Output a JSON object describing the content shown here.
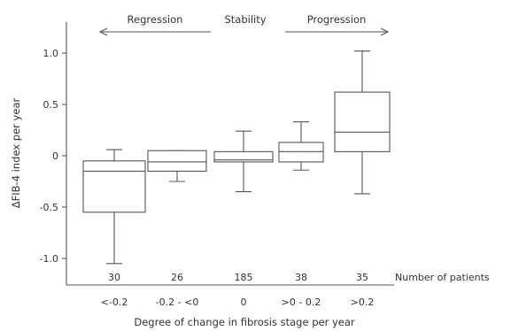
{
  "chart_data": {
    "type": "boxplot",
    "xlabel": "Degree of change in fibrosis stage per year",
    "ylabel": "ΔFIB-4 index per year",
    "ylim": [
      -1.2,
      1.2
    ],
    "y_ticks": [
      "1.0",
      "0.5",
      "0",
      "-0.5",
      "-1.0"
    ],
    "y_tick_values": [
      1.0,
      0.5,
      0,
      -0.5,
      -1.0
    ],
    "categories": [
      "<-0.2",
      "-0.2 - <0",
      "0",
      ">0 - 0.2",
      ">0.2"
    ],
    "n_label": "Number of patients",
    "n_values": [
      "30",
      "26",
      "185",
      "38",
      "35"
    ],
    "boxes": [
      {
        "category": "<-0.2",
        "whisker_low": -1.05,
        "q1": -0.55,
        "median": -0.15,
        "q3": -0.05,
        "whisker_high": 0.06
      },
      {
        "category": "-0.2 - <0",
        "whisker_low": -0.25,
        "q1": -0.15,
        "median": -0.06,
        "q3": 0.05,
        "whisker_high": 0.05
      },
      {
        "category": "0",
        "whisker_low": -0.35,
        "q1": -0.06,
        "median": -0.04,
        "q3": 0.04,
        "whisker_high": 0.24
      },
      {
        "category": ">0 - 0.2",
        "whisker_low": -0.14,
        "q1": -0.06,
        "median": 0.04,
        "q3": 0.13,
        "whisker_high": 0.33
      },
      {
        "category": ">0.2",
        "whisker_low": -0.37,
        "q1": 0.04,
        "median": 0.23,
        "q3": 0.62,
        "whisker_high": 1.02
      }
    ],
    "annotations": {
      "regression": "Regression",
      "stability": "Stability",
      "progression": "Progression"
    }
  }
}
